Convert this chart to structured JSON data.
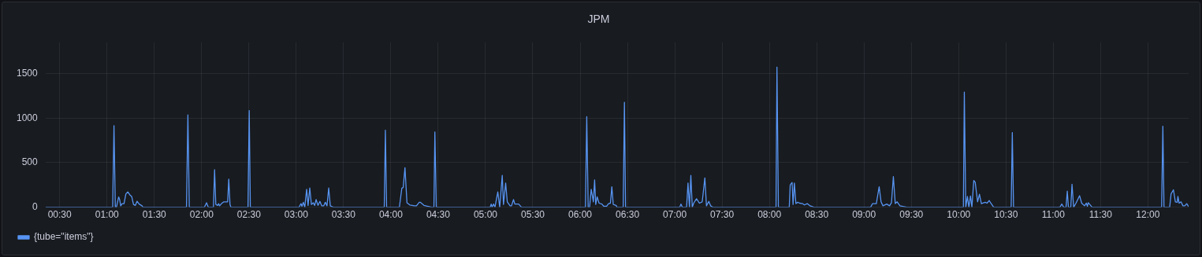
{
  "chart_data": {
    "type": "line",
    "title": "JPM",
    "x": [
      0.35,
      1.06,
      1.074,
      1.088,
      1.1,
      1.123,
      1.135,
      1.145,
      1.16,
      1.18,
      1.2,
      1.22,
      1.24,
      1.262,
      1.28,
      1.3,
      1.318,
      1.34,
      1.37,
      1.38,
      1.84,
      1.855,
      1.87,
      2.03,
      2.052,
      2.07,
      2.125,
      2.137,
      2.15,
      2.17,
      2.18,
      2.19,
      2.21,
      2.235,
      2.275,
      2.287,
      2.3,
      2.31,
      2.49,
      2.503,
      2.515,
      3.03,
      3.05,
      3.06,
      3.075,
      3.09,
      3.11,
      3.125,
      3.143,
      3.16,
      3.18,
      3.195,
      3.21,
      3.23,
      3.25,
      3.27,
      3.29,
      3.307,
      3.325,
      3.343,
      3.36,
      3.39,
      3.93,
      3.942,
      3.955,
      4.09,
      4.116,
      4.13,
      4.149,
      4.17,
      4.2,
      4.25,
      4.27,
      4.3,
      4.31,
      4.35,
      4.43,
      4.455,
      4.465,
      4.48,
      5.05,
      5.06,
      5.07,
      5.085,
      5.1,
      5.13,
      5.15,
      5.177,
      5.19,
      5.213,
      5.23,
      5.26,
      5.275,
      5.296,
      5.31,
      5.35,
      5.38,
      6.056,
      6.07,
      6.085,
      6.1,
      6.117,
      6.14,
      6.153,
      6.165,
      6.18,
      6.2,
      6.23,
      6.25,
      6.28,
      6.3,
      6.32,
      6.335,
      6.35,
      6.38,
      6.39,
      6.455,
      6.468,
      6.48,
      7.053,
      7.065,
      7.08,
      7.125,
      7.14,
      7.155,
      7.17,
      7.185,
      7.2,
      7.23,
      7.26,
      7.29,
      7.318,
      7.335,
      7.36,
      7.38,
      7.4,
      8.07,
      8.08,
      8.095,
      8.21,
      8.22,
      8.24,
      8.25,
      8.255,
      8.264,
      8.28,
      8.3,
      8.32,
      8.35,
      8.37,
      8.4,
      8.43,
      8.47,
      9.07,
      9.09,
      9.13,
      9.16,
      9.18,
      9.2,
      9.24,
      9.27,
      9.29,
      9.31,
      9.33,
      9.35,
      9.38,
      9.45,
      10.05,
      10.06,
      10.075,
      10.093,
      10.108,
      10.125,
      10.14,
      10.16,
      10.175,
      10.2,
      10.22,
      10.24,
      10.28,
      10.3,
      10.323,
      10.34,
      10.37,
      10.555,
      10.567,
      10.58,
      11.07,
      11.09,
      11.11,
      11.135,
      11.148,
      11.16,
      11.185,
      11.198,
      11.215,
      11.24,
      11.278,
      11.3,
      11.33,
      11.35,
      11.36,
      11.37,
      11.41,
      12.145,
      12.158,
      12.17,
      12.23,
      12.245,
      12.27,
      12.29,
      12.31,
      12.317,
      12.33,
      12.35,
      12.37,
      12.39,
      12.41,
      12.43
    ],
    "series": [
      {
        "name": "{tube=\"items\"}",
        "color": "#5794f2",
        "values": [
          0,
          0,
          915,
          0,
          0,
          115,
          80,
          15,
          40,
          40,
          150,
          171,
          140,
          117,
          30,
          20,
          66,
          35,
          15,
          0,
          0,
          1035,
          0,
          0,
          50,
          0,
          0,
          420,
          30,
          20,
          40,
          15,
          40,
          60,
          60,
          315,
          30,
          0,
          0,
          1085,
          0,
          0,
          40,
          10,
          55,
          0,
          200,
          20,
          215,
          30,
          50,
          20,
          85,
          20,
          65,
          15,
          15,
          55,
          15,
          215,
          15,
          0,
          0,
          863,
          0,
          0,
          213,
          220,
          443,
          50,
          25,
          15,
          15,
          55,
          55,
          20,
          0,
          0,
          843,
          0,
          0,
          35,
          0,
          35,
          0,
          171,
          0,
          357,
          30,
          271,
          60,
          15,
          15,
          86,
          35,
          35,
          0,
          0,
          1015,
          0,
          0,
          200,
          60,
          306,
          30,
          117,
          45,
          35,
          10,
          10,
          40,
          45,
          229,
          30,
          20,
          0,
          0,
          1177,
          0,
          0,
          35,
          0,
          0,
          271,
          0,
          357,
          0,
          45,
          95,
          45,
          60,
          329,
          15,
          65,
          15,
          0,
          0,
          1571,
          0,
          0,
          249,
          277,
          30,
          30,
          271,
          40,
          55,
          45,
          40,
          25,
          40,
          15,
          0,
          0,
          40,
          40,
          229,
          60,
          15,
          35,
          15,
          50,
          343,
          40,
          60,
          15,
          0,
          0,
          1291,
          0,
          120,
          0,
          125,
          0,
          300,
          280,
          60,
          145,
          40,
          55,
          45,
          75,
          45,
          0,
          0,
          837,
          0,
          0,
          35,
          0,
          0,
          180,
          0,
          0,
          257,
          0,
          45,
          129,
          45,
          15,
          45,
          10,
          50,
          0,
          0,
          908,
          0,
          0,
          150,
          195,
          60,
          55,
          120,
          45,
          60,
          15,
          15,
          40,
          5
        ]
      }
    ],
    "xlim": [
      0.35,
      12.43
    ],
    "xticks": [
      {
        "value": 0.5,
        "label": "00:30"
      },
      {
        "value": 1,
        "label": "01:00"
      },
      {
        "value": 1.5,
        "label": "01:30"
      },
      {
        "value": 2,
        "label": "02:00"
      },
      {
        "value": 2.5,
        "label": "02:30"
      },
      {
        "value": 3,
        "label": "03:00"
      },
      {
        "value": 3.5,
        "label": "03:30"
      },
      {
        "value": 4,
        "label": "04:00"
      },
      {
        "value": 4.5,
        "label": "04:30"
      },
      {
        "value": 5,
        "label": "05:00"
      },
      {
        "value": 5.5,
        "label": "05:30"
      },
      {
        "value": 6,
        "label": "06:00"
      },
      {
        "value": 6.5,
        "label": "06:30"
      },
      {
        "value": 7,
        "label": "07:00"
      },
      {
        "value": 7.5,
        "label": "07:30"
      },
      {
        "value": 8,
        "label": "08:00"
      },
      {
        "value": 8.5,
        "label": "08:30"
      },
      {
        "value": 9,
        "label": "09:00"
      },
      {
        "value": 9.5,
        "label": "09:30"
      },
      {
        "value": 10,
        "label": "10:00"
      },
      {
        "value": 10.5,
        "label": "10:30"
      },
      {
        "value": 11,
        "label": "11:00"
      },
      {
        "value": 11.5,
        "label": "11:30"
      },
      {
        "value": 12,
        "label": "12:00"
      }
    ],
    "ylim": [
      0,
      1850
    ],
    "yticks": [
      0,
      500,
      1000,
      1500
    ],
    "grid": true,
    "legend": "bottom left",
    "marker": "none"
  }
}
